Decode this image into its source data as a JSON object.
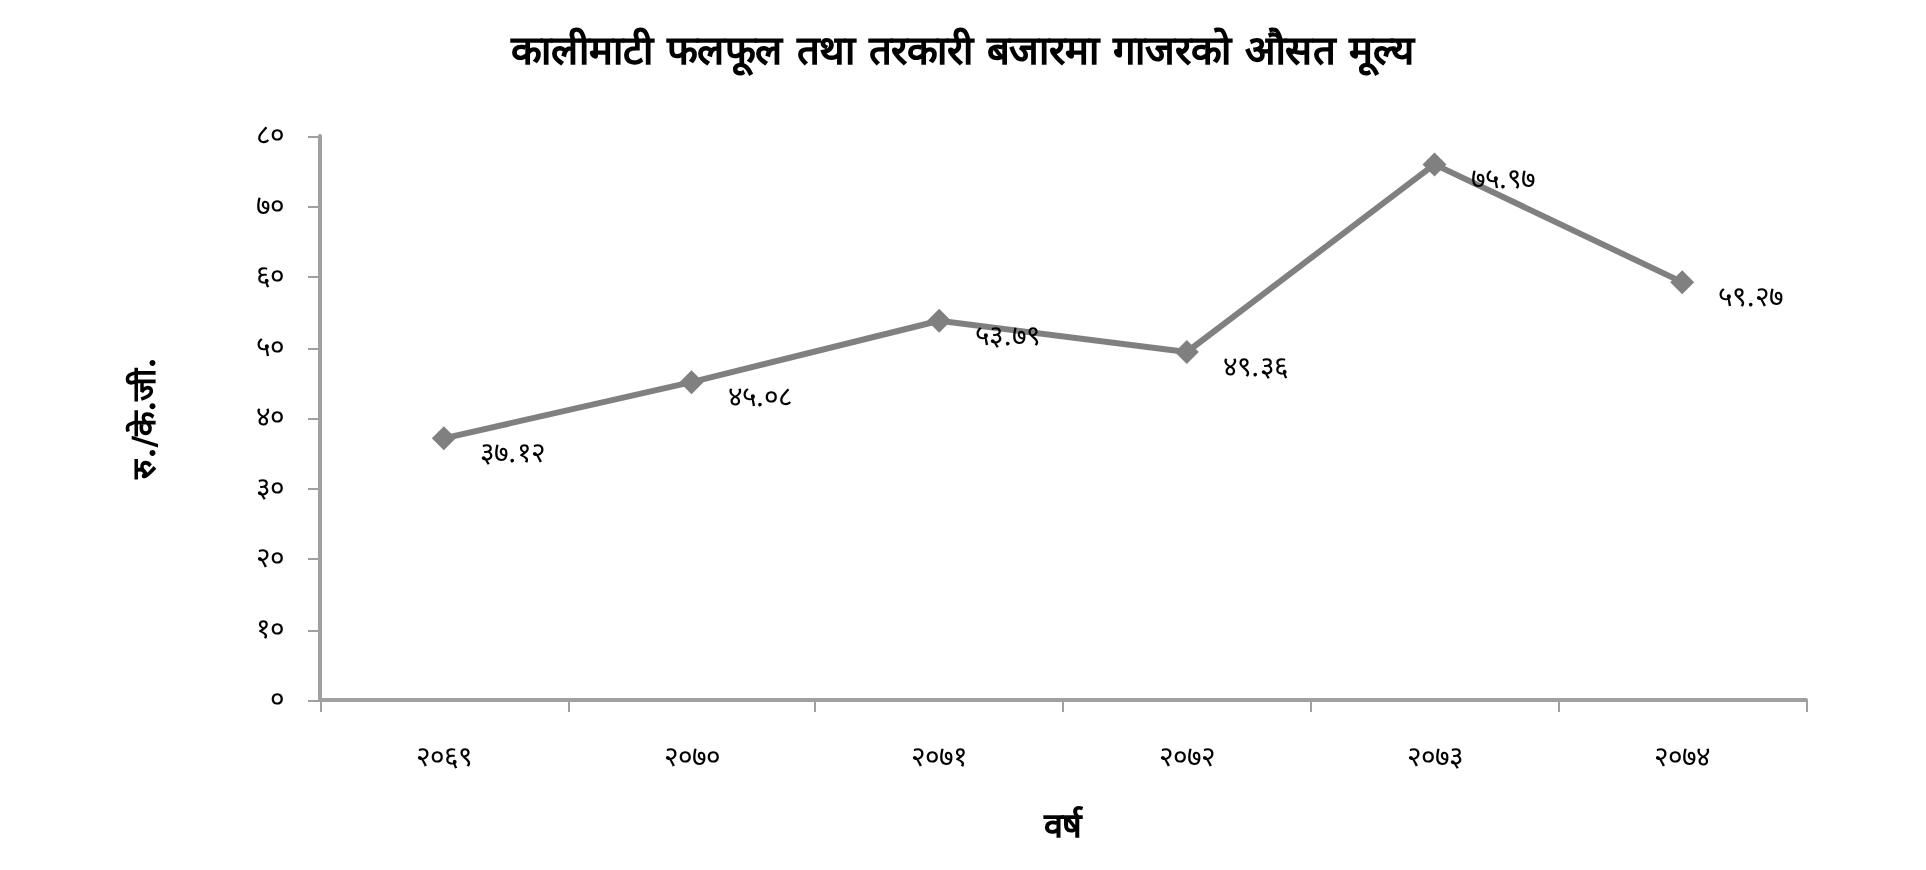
{
  "chart_data": {
    "type": "line",
    "title": "कालीमाटी फलफूल तथा तरकारी बजारमा गाजरको औसत मूल्य",
    "xlabel": "वर्ष",
    "ylabel": "रु./के.जी.",
    "categories": [
      "२०६९",
      "२०७०",
      "२०७१",
      "२०७२",
      "२०७३",
      "२०७४"
    ],
    "series": [
      {
        "color": "#808080",
        "values": [
          37.12,
          45.08,
          53.79,
          49.36,
          75.97,
          59.27
        ],
        "value_labels": [
          "३७.१२",
          "४५.०८",
          "५३.७९",
          "४९.३६",
          "७५.९७",
          "५९.२७"
        ]
      }
    ],
    "ylim": [
      0,
      80
    ],
    "yticks": [
      {
        "value": 0,
        "label": "०"
      },
      {
        "value": 10,
        "label": "१०"
      },
      {
        "value": 20,
        "label": "२०"
      },
      {
        "value": 30,
        "label": "३०"
      },
      {
        "value": 40,
        "label": "४०"
      },
      {
        "value": 50,
        "label": "५०"
      },
      {
        "value": 60,
        "label": "६०"
      },
      {
        "value": 70,
        "label": "७०"
      },
      {
        "value": 80,
        "label": "८०"
      }
    ],
    "grid": false,
    "marker": "diamond",
    "line_style": "solid"
  }
}
